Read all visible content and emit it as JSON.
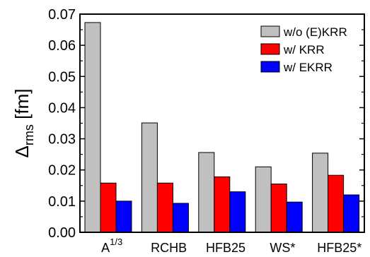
{
  "chart_data": {
    "type": "bar",
    "ylabel_main": "Δ",
    "ylabel_sub": "rms",
    "ylabel_unit": " [fm]",
    "xlabel": "",
    "ylim": [
      0,
      0.07
    ],
    "yticks": [
      0.0,
      0.01,
      0.02,
      0.03,
      0.04,
      0.05,
      0.06,
      0.07
    ],
    "ytick_labels": [
      "0.00",
      "0.01",
      "0.02",
      "0.03",
      "0.04",
      "0.05",
      "0.06",
      "0.07"
    ],
    "categories": [
      {
        "label": "A",
        "sup": "1/3"
      },
      {
        "label": "RCHB",
        "sup": ""
      },
      {
        "label": "HFB25",
        "sup": ""
      },
      {
        "label": "WS*",
        "sup": ""
      },
      {
        "label": "HFB25*",
        "sup": ""
      }
    ],
    "series": [
      {
        "name": "w/o (E)KRR",
        "color": "#c0c0c0",
        "values": [
          0.0673,
          0.0351,
          0.0256,
          0.021,
          0.0254
        ]
      },
      {
        "name": "w/ KRR",
        "color": "#ff0000",
        "values": [
          0.0158,
          0.0158,
          0.0178,
          0.0155,
          0.0183
        ]
      },
      {
        "name": "w/ EKRR",
        "color": "#0000ff",
        "values": [
          0.01,
          0.0093,
          0.013,
          0.0097,
          0.012
        ]
      }
    ],
    "legend_position": "top-right",
    "grid": false
  }
}
